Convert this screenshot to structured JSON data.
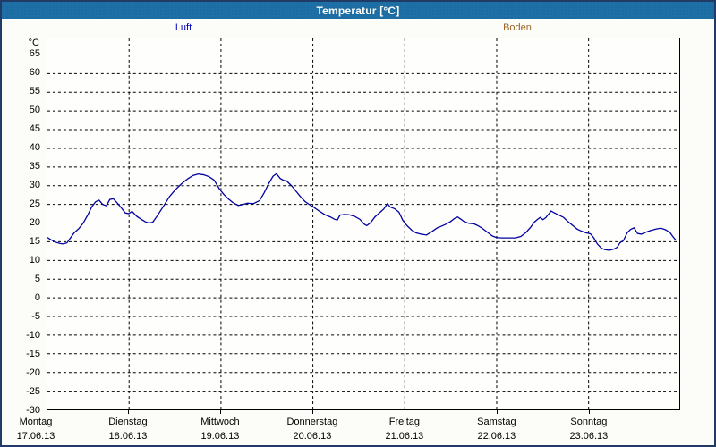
{
  "window": {
    "title": "Temperatur [°C]"
  },
  "legend": {
    "items": [
      {
        "label": "Luft",
        "color": "#0000bb"
      },
      {
        "label": "Boden",
        "color": "#9c6426"
      }
    ]
  },
  "colors": {
    "titlebar": "#1d6fa5",
    "window_border": "#1f3b66",
    "grid": "#000000",
    "luft_line": "#0000a0"
  },
  "chart_data": {
    "type": "line",
    "title": "Temperatur [°C]",
    "ylabel": "°C",
    "x_unit": "hours since Montag 17.06.13 00:00",
    "xlim": [
      2.8,
      167.8
    ],
    "ylim": [
      -30,
      69.3
    ],
    "grid": "dashed",
    "y_tick_labels": [
      65,
      60,
      55,
      50,
      45,
      40,
      35,
      30,
      25,
      20,
      15,
      10,
      5,
      0,
      -5,
      -10,
      -15,
      -20,
      -25,
      -30
    ],
    "y_grid_values": [
      65,
      60,
      55,
      50,
      45,
      40,
      35,
      30,
      25,
      20,
      15,
      10,
      5,
      0,
      -5,
      -10,
      -15,
      -20,
      -25
    ],
    "x_grid_hours": [
      24,
      48,
      72,
      96,
      120,
      144
    ],
    "x_ticks": [
      {
        "label": "Montag",
        "date": "17.06.13",
        "hour": 0
      },
      {
        "label": "Dienstag",
        "date": "18.06.13",
        "hour": 24
      },
      {
        "label": "Mittwoch",
        "date": "19.06.13",
        "hour": 48
      },
      {
        "label": "Donnerstag",
        "date": "20.06.13",
        "hour": 72
      },
      {
        "label": "Freitag",
        "date": "21.06.13",
        "hour": 96
      },
      {
        "label": "Samstag",
        "date": "22.06.13",
        "hour": 120
      },
      {
        "label": "Sonntag",
        "date": "23.06.13",
        "hour": 144
      }
    ],
    "series": [
      {
        "name": "Luft",
        "color": "#0000a0",
        "points": [
          [
            2.8,
            16.0
          ],
          [
            3.7,
            15.4
          ],
          [
            5.1,
            14.7
          ],
          [
            6.1,
            14.4
          ],
          [
            7.0,
            14.3
          ],
          [
            7.9,
            14.6
          ],
          [
            8.6,
            15.6
          ],
          [
            9.8,
            17.3
          ],
          [
            11.0,
            18.4
          ],
          [
            12.1,
            19.8
          ],
          [
            13.3,
            22.0
          ],
          [
            14.4,
            24.3
          ],
          [
            15.4,
            25.6
          ],
          [
            16.3,
            26.0
          ],
          [
            17.2,
            24.9
          ],
          [
            18.2,
            24.5
          ],
          [
            19.1,
            26.2
          ],
          [
            20.0,
            26.4
          ],
          [
            21.0,
            25.3
          ],
          [
            21.9,
            24.2
          ],
          [
            23.1,
            22.6
          ],
          [
            24.0,
            22.4
          ],
          [
            24.9,
            23.0
          ],
          [
            26.1,
            21.7
          ],
          [
            27.3,
            20.9
          ],
          [
            28.4,
            20.2
          ],
          [
            29.3,
            19.9
          ],
          [
            30.3,
            20.1
          ],
          [
            31.4,
            21.7
          ],
          [
            33.1,
            24.4
          ],
          [
            34.7,
            27.0
          ],
          [
            36.1,
            28.7
          ],
          [
            37.7,
            30.3
          ],
          [
            39.4,
            31.7
          ],
          [
            40.8,
            32.6
          ],
          [
            42.2,
            33.0
          ],
          [
            43.6,
            32.8
          ],
          [
            45.0,
            32.3
          ],
          [
            46.3,
            31.4
          ],
          [
            47.7,
            29.0
          ],
          [
            48.9,
            27.5
          ],
          [
            50.1,
            26.3
          ],
          [
            51.2,
            25.4
          ],
          [
            52.6,
            24.6
          ],
          [
            53.6,
            24.8
          ],
          [
            55.0,
            25.2
          ],
          [
            56.6,
            25.1
          ],
          [
            58.2,
            25.9
          ],
          [
            59.4,
            28.0
          ],
          [
            60.5,
            30.3
          ],
          [
            61.7,
            32.4
          ],
          [
            62.6,
            33.1
          ],
          [
            63.6,
            31.8
          ],
          [
            64.5,
            31.3
          ],
          [
            65.2,
            31.2
          ],
          [
            66.6,
            29.8
          ],
          [
            67.8,
            28.3
          ],
          [
            69.0,
            26.8
          ],
          [
            70.1,
            25.6
          ],
          [
            71.3,
            24.8
          ],
          [
            72.5,
            24.0
          ],
          [
            73.9,
            23.0
          ],
          [
            75.3,
            22.1
          ],
          [
            76.7,
            21.5
          ],
          [
            77.8,
            20.9
          ],
          [
            78.5,
            20.7
          ],
          [
            79.2,
            22.0
          ],
          [
            80.4,
            22.2
          ],
          [
            81.6,
            22.1
          ],
          [
            83.0,
            21.7
          ],
          [
            84.4,
            20.9
          ],
          [
            85.5,
            19.6
          ],
          [
            86.2,
            19.2
          ],
          [
            87.2,
            20.0
          ],
          [
            88.3,
            21.5
          ],
          [
            89.5,
            22.6
          ],
          [
            90.6,
            23.6
          ],
          [
            91.6,
            25.1
          ],
          [
            92.3,
            24.2
          ],
          [
            93.5,
            23.7
          ],
          [
            94.6,
            22.8
          ],
          [
            95.6,
            20.6
          ],
          [
            96.7,
            19.2
          ],
          [
            97.9,
            18.0
          ],
          [
            99.0,
            17.3
          ],
          [
            100.4,
            16.9
          ],
          [
            101.8,
            16.7
          ],
          [
            103.2,
            17.6
          ],
          [
            104.6,
            18.6
          ],
          [
            105.8,
            19.1
          ],
          [
            106.9,
            19.6
          ],
          [
            108.1,
            20.3
          ],
          [
            109.2,
            21.2
          ],
          [
            109.9,
            21.5
          ],
          [
            110.8,
            20.9
          ],
          [
            111.7,
            20.2
          ],
          [
            112.9,
            19.8
          ],
          [
            114.1,
            19.7
          ],
          [
            115.0,
            19.3
          ],
          [
            116.2,
            18.6
          ],
          [
            117.6,
            17.5
          ],
          [
            119.0,
            16.4
          ],
          [
            120.1,
            16.0
          ],
          [
            121.5,
            15.9
          ],
          [
            123.4,
            15.9
          ],
          [
            125.0,
            15.9
          ],
          [
            126.4,
            16.3
          ],
          [
            127.8,
            17.4
          ],
          [
            129.0,
            18.8
          ],
          [
            129.9,
            20.1
          ],
          [
            130.8,
            20.9
          ],
          [
            131.5,
            21.4
          ],
          [
            132.2,
            20.8
          ],
          [
            132.9,
            21.3
          ],
          [
            133.6,
            22.2
          ],
          [
            134.3,
            23.1
          ],
          [
            135.2,
            22.6
          ],
          [
            136.4,
            22.0
          ],
          [
            137.6,
            21.4
          ],
          [
            138.7,
            20.3
          ],
          [
            139.9,
            19.3
          ],
          [
            141.1,
            18.3
          ],
          [
            142.3,
            17.7
          ],
          [
            143.4,
            17.3
          ],
          [
            144.6,
            17.0
          ],
          [
            145.5,
            15.9
          ],
          [
            146.4,
            14.3
          ],
          [
            147.4,
            13.2
          ],
          [
            148.3,
            12.8
          ],
          [
            149.5,
            12.6
          ],
          [
            150.7,
            12.9
          ],
          [
            151.6,
            13.4
          ],
          [
            152.3,
            14.6
          ],
          [
            153.2,
            15.2
          ],
          [
            154.2,
            17.3
          ],
          [
            155.1,
            18.2
          ],
          [
            156.0,
            18.6
          ],
          [
            156.9,
            17.1
          ],
          [
            157.9,
            16.9
          ],
          [
            159.0,
            17.4
          ],
          [
            160.4,
            17.9
          ],
          [
            161.8,
            18.3
          ],
          [
            163.0,
            18.5
          ],
          [
            164.2,
            18.1
          ],
          [
            165.4,
            17.3
          ],
          [
            166.1,
            16.3
          ],
          [
            166.8,
            15.4
          ]
        ]
      },
      {
        "name": "Boden",
        "color": "#9c6426",
        "points": []
      }
    ]
  }
}
